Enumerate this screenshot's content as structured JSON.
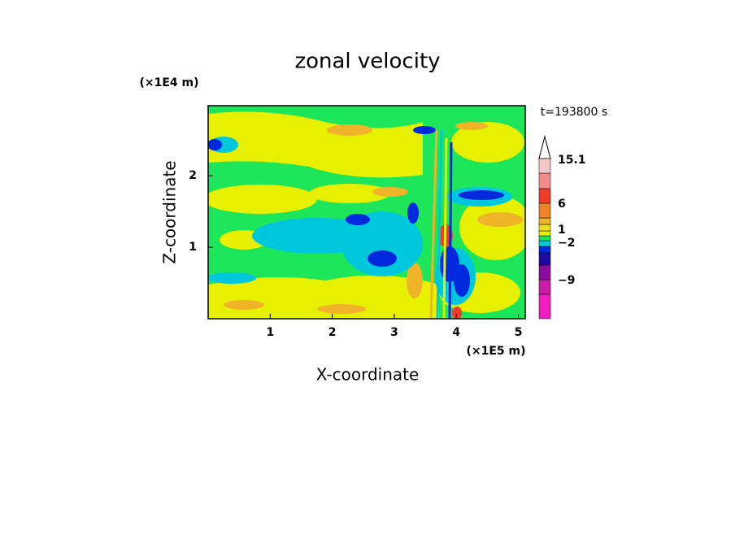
{
  "chart_data": {
    "type": "contour",
    "title": "zonal velocity",
    "x_label": "X-coordinate",
    "y_label": "Z-coordinate",
    "x_scale_label": "(×1E5 m)",
    "y_scale_label": "(×1E4 m)",
    "time_label": "t=193800 s",
    "xlim": [
      0,
      5.11
    ],
    "xticks": [
      1,
      2,
      3,
      4,
      5
    ],
    "ylim": [
      0,
      2.98
    ],
    "yticks": [
      1,
      2
    ],
    "colorbar": {
      "colors": [
        "#f01ebe",
        "#c81eaa",
        "#8c0aa0",
        "#1e0aa0",
        "#0028dc",
        "#00c8dc",
        "#1ee65a",
        "#e6f000",
        "#f0dc1e",
        "#f0b428",
        "#f08228",
        "#f03c28",
        "#f08c8c",
        "#f0c8c8"
      ],
      "labels": [
        "15.1",
        "6",
        "1",
        "−2",
        "−9"
      ]
    }
  }
}
